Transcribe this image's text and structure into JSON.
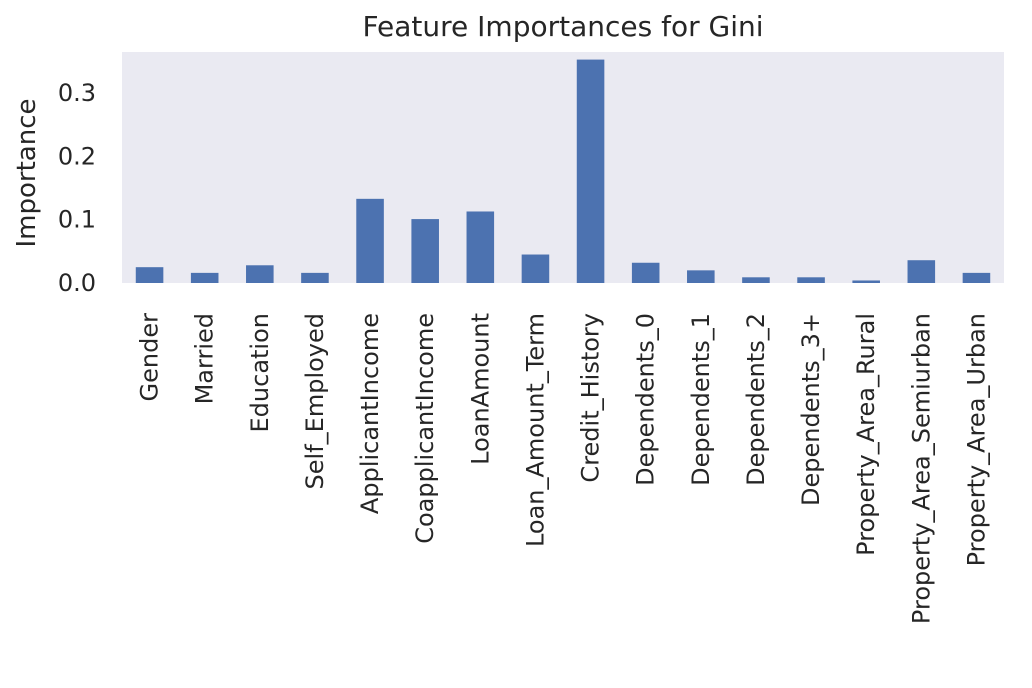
{
  "chart_data": {
    "type": "bar",
    "title": "Feature Importances for Gini",
    "xlabel": "",
    "ylabel": "Importance",
    "categories": [
      "Gender",
      "Married",
      "Education",
      "Self_Employed",
      "ApplicantIncome",
      "CoapplicantIncome",
      "LoanAmount",
      "Loan_Amount_Term",
      "Credit_History",
      "Dependents_0",
      "Dependents_1",
      "Dependents_2",
      "Dependents_3+",
      "Property_Area_Rural",
      "Property_Area_Semiurban",
      "Property_Area_Urban"
    ],
    "values": [
      0.025,
      0.016,
      0.028,
      0.016,
      0.133,
      0.101,
      0.113,
      0.045,
      0.353,
      0.032,
      0.02,
      0.009,
      0.009,
      0.004,
      0.036,
      0.016
    ],
    "ylim": [
      0,
      0.365
    ],
    "yticks": [
      0.0,
      0.1,
      0.2,
      0.3
    ],
    "ytick_labels": [
      "0.0",
      "0.1",
      "0.2",
      "0.3"
    ],
    "grid": false,
    "legend": "none",
    "colors": {
      "bar": "#4c72b0",
      "plot_background": "#eaeaf2",
      "text": "#262626"
    }
  }
}
